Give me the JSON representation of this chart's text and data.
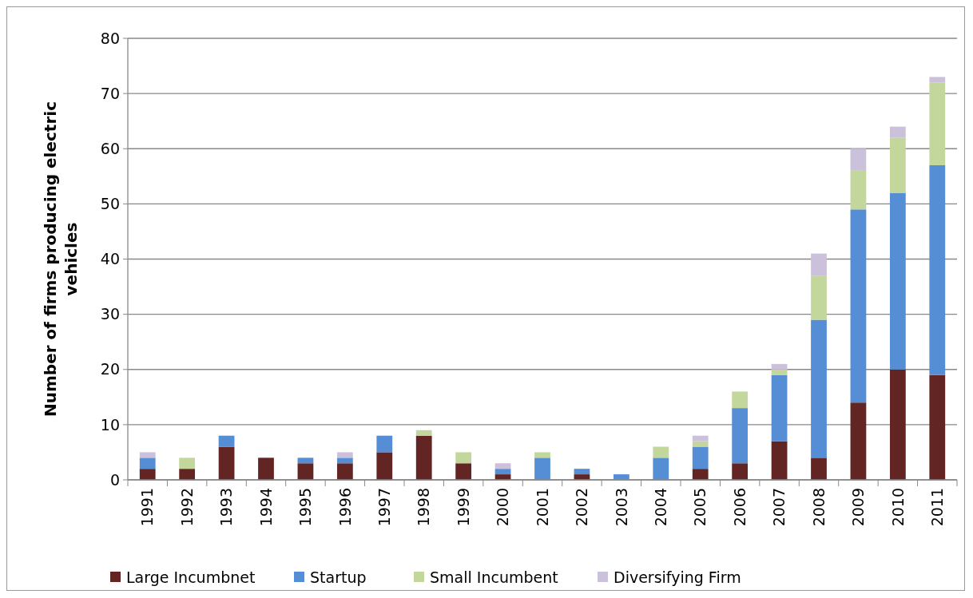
{
  "chart_data": {
    "type": "bar",
    "stacked": true,
    "ylabel": "Number of firms producing electric vehicles",
    "categories": [
      "1991",
      "1992",
      "1993",
      "1994",
      "1995",
      "1996",
      "1997",
      "1998",
      "1999",
      "2000",
      "2001",
      "2002",
      "2003",
      "2004",
      "2005",
      "2006",
      "2007",
      "2008",
      "2009",
      "2010",
      "2011"
    ],
    "series": [
      {
        "name": "Large Incumbnet",
        "color": "#632523",
        "values": [
          2,
          2,
          6,
          4,
          3,
          3,
          5,
          8,
          3,
          1,
          0,
          1,
          0,
          0,
          2,
          3,
          7,
          4,
          14,
          20,
          19
        ]
      },
      {
        "name": "Startup",
        "color": "#558ed5",
        "values": [
          2,
          0,
          2,
          0,
          1,
          1,
          3,
          0,
          0,
          1,
          4,
          1,
          1,
          4,
          4,
          10,
          12,
          25,
          35,
          32,
          38
        ]
      },
      {
        "name": "Small Incumbent",
        "color": "#c3d69b",
        "values": [
          0,
          2,
          0,
          0,
          0,
          0,
          0,
          1,
          2,
          0,
          1,
          0,
          0,
          2,
          1,
          3,
          1,
          8,
          7,
          10,
          15
        ]
      },
      {
        "name": "Diversifying Firm",
        "color": "#ccc1da",
        "values": [
          1,
          0,
          0,
          0,
          0,
          1,
          0,
          0,
          0,
          1,
          0,
          0,
          0,
          0,
          1,
          0,
          1,
          4,
          4,
          2,
          1
        ]
      }
    ],
    "ylim": [
      0,
      80
    ],
    "yticks": [
      0,
      10,
      20,
      30,
      40,
      50,
      60,
      70,
      80
    ],
    "grid": "y",
    "legend": "bottom"
  }
}
